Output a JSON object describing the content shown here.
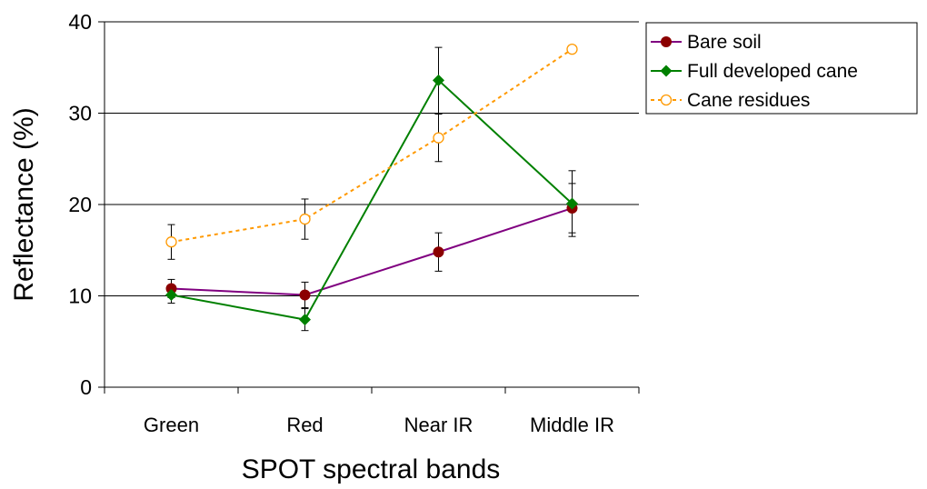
{
  "chart_data": {
    "type": "line",
    "xlabel": "SPOT spectral bands",
    "ylabel": "Reflectance (%)",
    "categories": [
      "Green",
      "Red",
      "Near IR",
      "Middle IR"
    ],
    "ylim": [
      0,
      40
    ],
    "yticks": [
      0,
      10,
      20,
      30,
      40
    ],
    "grid": "horizontal major gridlines",
    "legend_position": "right",
    "series": [
      {
        "name": "Bare soil",
        "values": [
          10.8,
          10.1,
          14.8,
          19.6
        ],
        "errors": [
          1.0,
          1.4,
          2.1,
          2.7
        ],
        "color": "#800080",
        "marker": "filled-circle",
        "marker_color": "#8b0000",
        "line_style": "solid"
      },
      {
        "name": "Full developed cane",
        "values": [
          10.1,
          7.4,
          33.6,
          20.1
        ],
        "errors": [
          0.9,
          1.2,
          3.6,
          3.6
        ],
        "color": "#008000",
        "marker": "filled-diamond",
        "marker_color": "#008000",
        "line_style": "solid"
      },
      {
        "name": "Cane residues",
        "values": [
          15.9,
          18.4,
          27.3,
          37.0
        ],
        "errors": [
          1.9,
          2.2,
          2.6,
          0
        ],
        "color": "#ff9900",
        "marker": "hollow-circle",
        "marker_color": "#ff9900",
        "line_style": "dotted"
      }
    ]
  }
}
